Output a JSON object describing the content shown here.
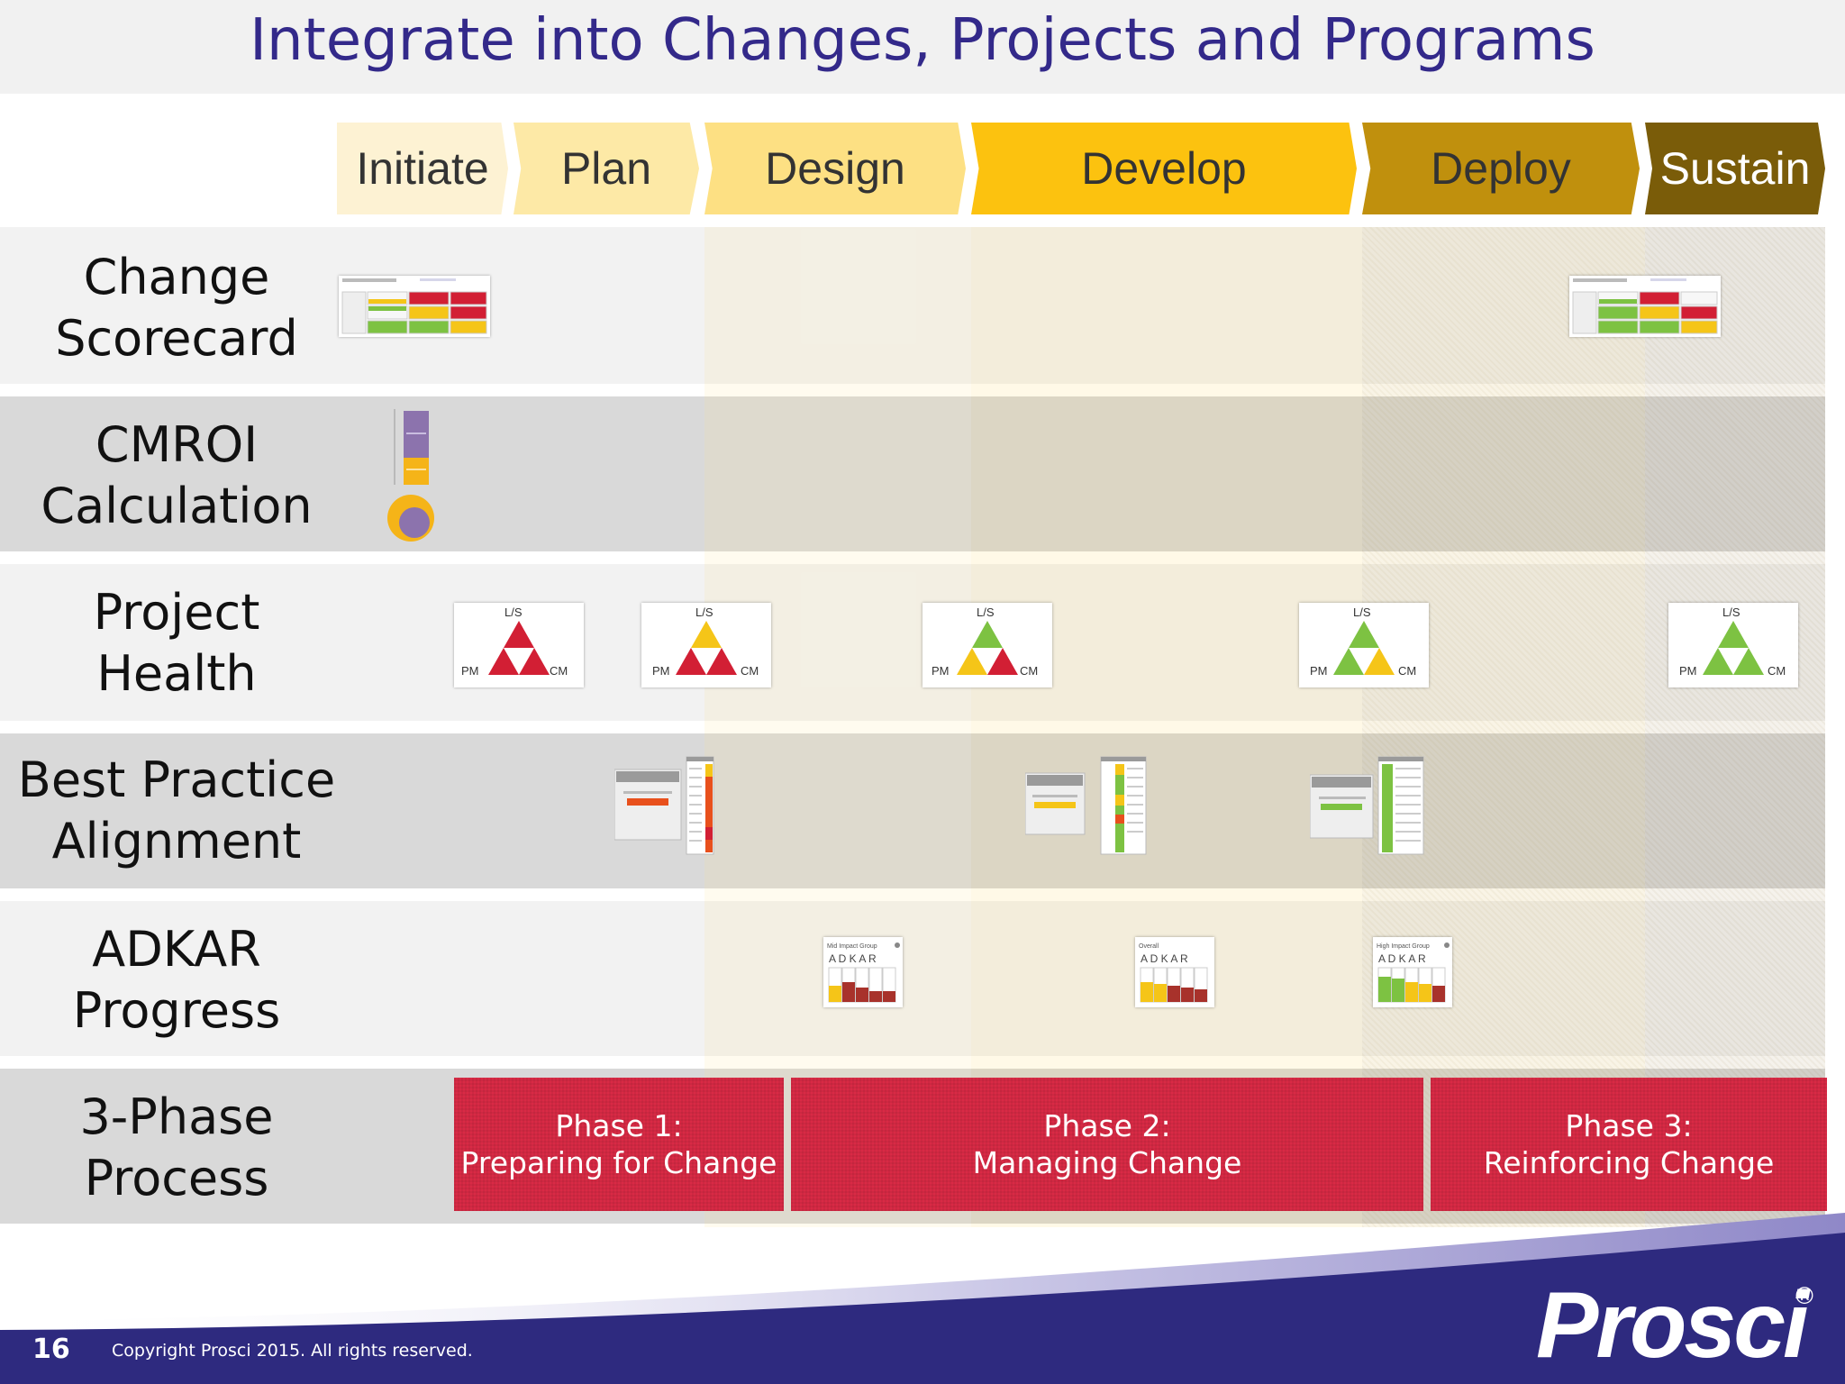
{
  "title": "Integrate into Changes, Projects and Programs",
  "phases_header": [
    {
      "label": "Initiate",
      "color": "#fdf2d3",
      "text_color": "#333333"
    },
    {
      "label": "Plan",
      "color": "#fde9a6",
      "text_color": "#333333"
    },
    {
      "label": "Design",
      "color": "#fde083",
      "text_color": "#333333"
    },
    {
      "label": "Develop",
      "color": "#fcc20f",
      "text_color": "#333333"
    },
    {
      "label": "Deploy",
      "color": "#c0900d",
      "text_color": "#333333"
    },
    {
      "label": "Sustain",
      "color": "#7a5c09",
      "text_color": "#ffffff"
    }
  ],
  "rows": [
    {
      "line1": "Change",
      "line2": "Scorecard"
    },
    {
      "line1": "CMROI",
      "line2": "Calculation"
    },
    {
      "line1": "Project",
      "line2": "Health"
    },
    {
      "line1": "Best Practice",
      "line2": "Alignment"
    },
    {
      "line1": "ADKAR",
      "line2": "Progress"
    },
    {
      "line1": "3-Phase",
      "line2": "Process"
    }
  ],
  "project_health": {
    "top_label": "L/S",
    "left_label": "PM",
    "right_label": "CM"
  },
  "adkar_letters": "A D K A R",
  "adkar_groups": [
    "Mid Impact Group",
    "Overall",
    "High Impact Group"
  ],
  "process_phases": [
    {
      "line1": "Phase 1:",
      "line2": "Preparing for Change"
    },
    {
      "line1": "Phase 2:",
      "line2": "Managing Change"
    },
    {
      "line1": "Phase 3:",
      "line2": "Reinforcing Change"
    }
  ],
  "footer": {
    "page_number": "16",
    "copyright": "Copyright Prosci 2015. All rights reserved.",
    "logo": "Prosci",
    "registered": "®"
  },
  "colors": {
    "title": "#33298a",
    "footer_navy": "#2e2a7f",
    "phase_red": "#d92a45",
    "red": "#d21f34",
    "yellow": "#f5c518",
    "green": "#7dc242",
    "purple": "#8c73ad"
  }
}
